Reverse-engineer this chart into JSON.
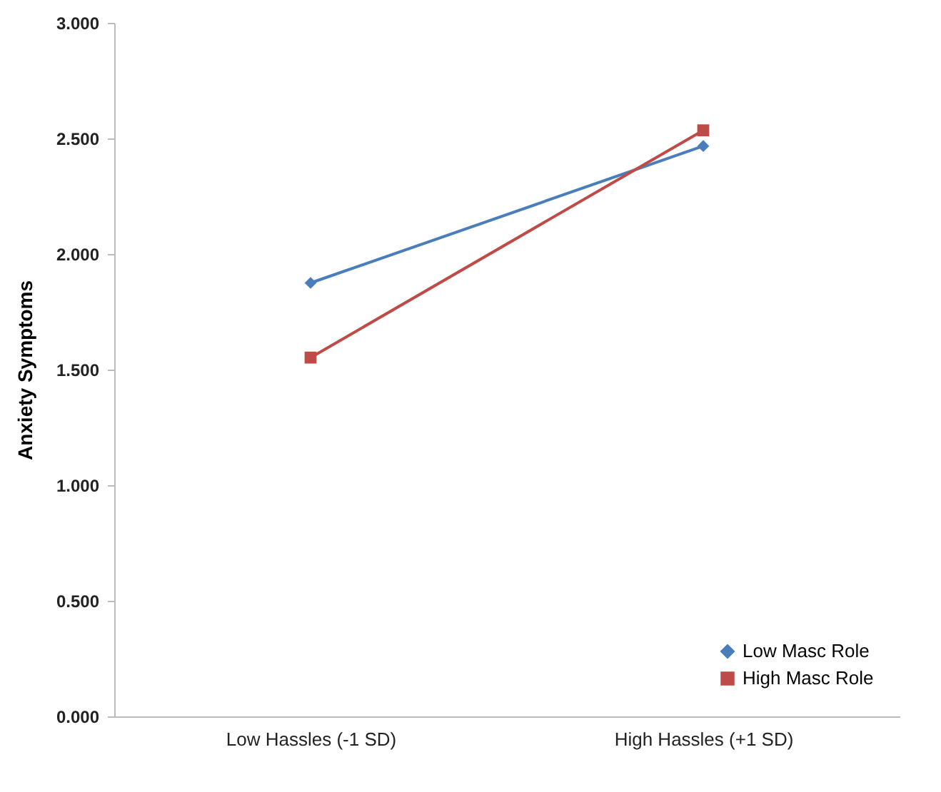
{
  "chart_data": {
    "type": "line",
    "ylabel": "Anxiety Symptoms",
    "categories": [
      "Low Hassles (-1 SD)",
      "High Hassles (+1 SD)"
    ],
    "series": [
      {
        "name": "Low Masc Role",
        "color": "#4a7ebb",
        "values": [
          1.875,
          2.467
        ],
        "marker": "diamond"
      },
      {
        "name": "High Masc Role",
        "color": "#be4b48",
        "values": [
          1.552,
          2.535
        ],
        "marker": "square"
      }
    ],
    "ylim": [
      0,
      3
    ],
    "yticks": [
      {
        "value": 0,
        "label": "0.000"
      },
      {
        "value": 0.5,
        "label": "0.500"
      },
      {
        "value": 1,
        "label": "1.000"
      },
      {
        "value": 1.5,
        "label": "1.500"
      },
      {
        "value": 2,
        "label": "2.000"
      },
      {
        "value": 2.5,
        "label": "2.500"
      },
      {
        "value": 3,
        "label": "3.000"
      }
    ],
    "grid": false,
    "legend": "bottom right"
  }
}
